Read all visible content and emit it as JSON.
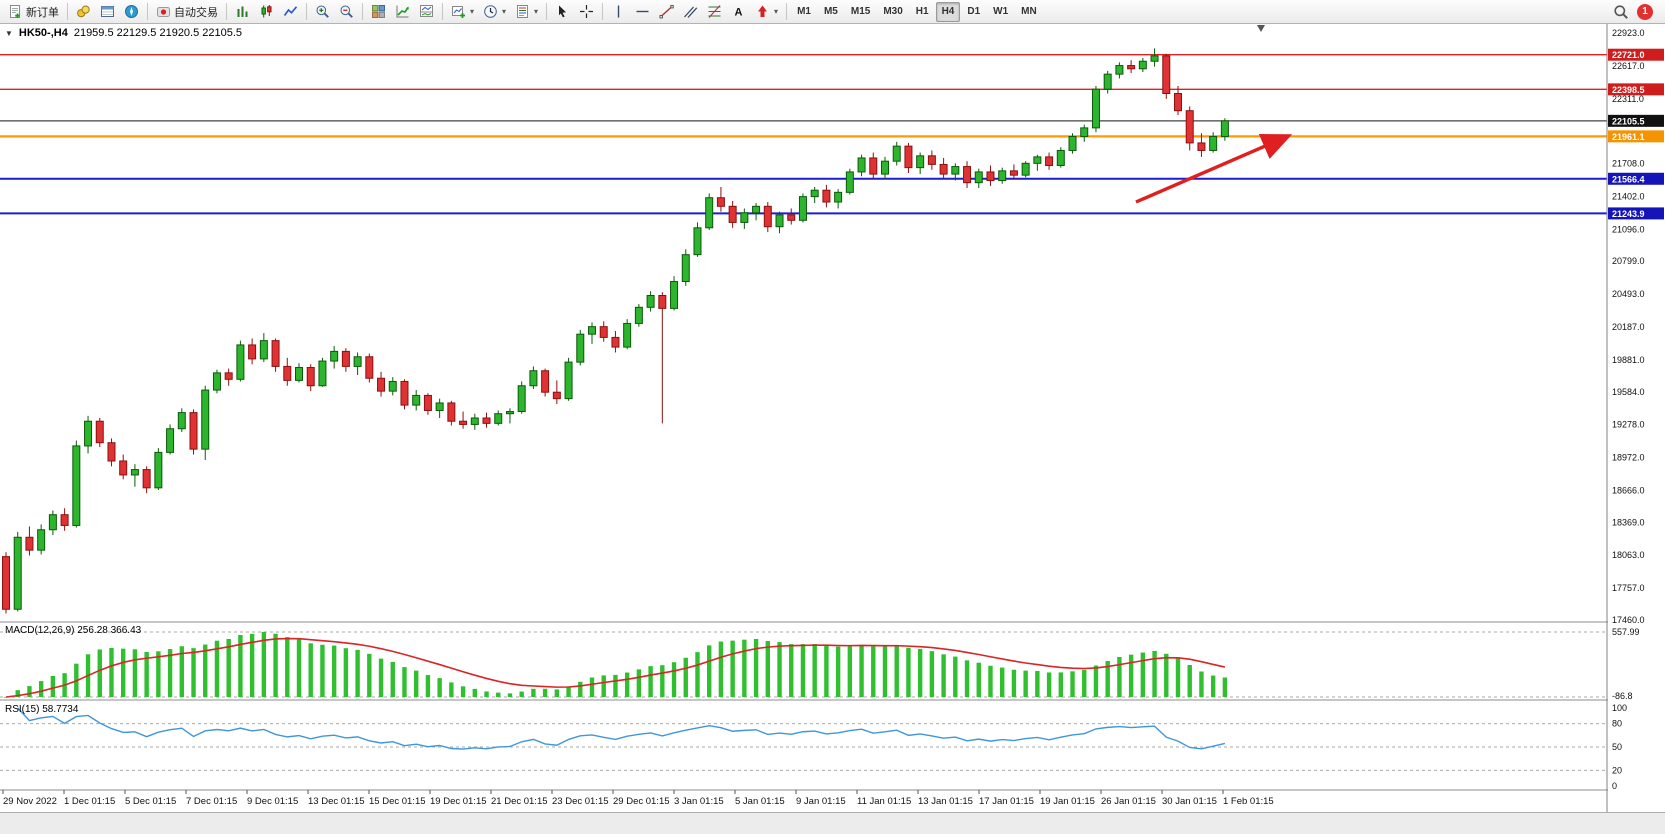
{
  "toolbar": {
    "new_order_label": "新订单",
    "auto_trading_label": "自动交易",
    "timeframes": [
      "M1",
      "M5",
      "M15",
      "M30",
      "H1",
      "H4",
      "D1",
      "W1",
      "MN"
    ],
    "active_timeframe": "H4",
    "notification_count": "1"
  },
  "chart": {
    "title_symbol": "HK50-,H4",
    "title_ohlc": "21959.5 22129.5 21920.5 22105.5"
  },
  "macd": {
    "label": "MACD(12,26,9) 256.28 366.43",
    "params": [
      12,
      26,
      9
    ],
    "axis_max": "557.99",
    "axis_min": "-86.8",
    "histogram_color": "#2fbf2f",
    "signal_color": "#d92525"
  },
  "rsi": {
    "label": "RSI(15) 58.7734",
    "period": 15,
    "levels": [
      80,
      50,
      20
    ],
    "axis_labels": [
      100,
      80,
      50,
      20,
      0
    ],
    "line_color": "#3f96dd"
  },
  "annotation": {
    "type": "trend-arrow-up",
    "color": "#e02020"
  },
  "chart_data": {
    "type": "candlestick",
    "symbol": "HK50-",
    "timeframe": "H4",
    "y_range": [
      17460.0,
      22923.0
    ],
    "bull_color": "#2db52d",
    "bull_edge": "#0b5a0b",
    "bear_color": "#e03232",
    "bear_edge": "#8a1111",
    "price_axis_labels": [
      22923.0,
      22617.0,
      22311.0,
      21708.0,
      21402.0,
      21096.0,
      20799.0,
      20493.0,
      20187.0,
      19881.0,
      19584.0,
      19278.0,
      18972.0,
      18666.0,
      18369.0,
      18063.0,
      17757.0,
      17460.0
    ],
    "time_labels": [
      "29 Nov 2022",
      "1 Dec 01:15",
      "5 Dec 01:15",
      "7 Dec 01:15",
      "9 Dec 01:15",
      "13 Dec 01:15",
      "15 Dec 01:15",
      "19 Dec 01:15",
      "21 Dec 01:15",
      "23 Dec 01:15",
      "29 Dec 01:15",
      "3 Jan 01:15",
      "5 Jan 01:15",
      "9 Jan 01:15",
      "11 Jan 01:15",
      "13 Jan 01:15",
      "17 Jan 01:15",
      "19 Jan 01:15",
      "26 Jan 01:15",
      "30 Jan 01:15",
      "1 Feb 01:15"
    ],
    "levels": [
      {
        "price": 22721.0,
        "label": "22721.0",
        "line_color": "#e01f1f",
        "badge_color": "#cf1d1d",
        "width": 1.4
      },
      {
        "price": 22398.5,
        "label": "22398.5",
        "line_color": "#e01f1f",
        "badge_color": "#cf1d1d",
        "width": 1.4
      },
      {
        "price": 22105.5,
        "label": "22105.5",
        "line_color": "#444444",
        "badge_color": "#111111",
        "width": 1.2
      },
      {
        "price": 21961.1,
        "label": "21961.1",
        "line_color": "#ff9b00",
        "badge_color": "#f59300",
        "width": 2.2
      },
      {
        "price": 21566.4,
        "label": "21566.4",
        "line_color": "#1d1dd0",
        "badge_color": "#1414b8",
        "width": 2.0
      },
      {
        "price": 21243.9,
        "label": "21243.9",
        "line_color": "#1d1dd0",
        "badge_color": "#1414b8",
        "width": 2.0
      }
    ],
    "ohlc": [
      [
        18050,
        18090,
        17520,
        17560
      ],
      [
        17560,
        18280,
        17540,
        18230
      ],
      [
        18230,
        18330,
        18060,
        18110
      ],
      [
        18110,
        18350,
        18070,
        18300
      ],
      [
        18300,
        18480,
        18250,
        18440
      ],
      [
        18440,
        18500,
        18290,
        18340
      ],
      [
        18340,
        19130,
        18320,
        19080
      ],
      [
        19080,
        19360,
        19010,
        19310
      ],
      [
        19310,
        19340,
        19070,
        19110
      ],
      [
        19110,
        19150,
        18890,
        18940
      ],
      [
        18940,
        19000,
        18770,
        18810
      ],
      [
        18810,
        18910,
        18700,
        18860
      ],
      [
        18860,
        18890,
        18640,
        18690
      ],
      [
        18690,
        19060,
        18670,
        19020
      ],
      [
        19020,
        19280,
        19000,
        19240
      ],
      [
        19240,
        19430,
        19210,
        19390
      ],
      [
        19390,
        19420,
        19000,
        19050
      ],
      [
        19050,
        19640,
        18950,
        19600
      ],
      [
        19600,
        19790,
        19570,
        19760
      ],
      [
        19760,
        19800,
        19640,
        19700
      ],
      [
        19700,
        20060,
        19680,
        20020
      ],
      [
        20020,
        20080,
        19840,
        19890
      ],
      [
        19890,
        20130,
        19860,
        20060
      ],
      [
        20060,
        20080,
        19770,
        19820
      ],
      [
        19820,
        19900,
        19640,
        19690
      ],
      [
        19690,
        19850,
        19670,
        19810
      ],
      [
        19810,
        19840,
        19590,
        19640
      ],
      [
        19640,
        19900,
        19630,
        19870
      ],
      [
        19870,
        20010,
        19800,
        19960
      ],
      [
        19960,
        19990,
        19770,
        19820
      ],
      [
        19820,
        19950,
        19740,
        19910
      ],
      [
        19910,
        19940,
        19670,
        19710
      ],
      [
        19710,
        19770,
        19540,
        19590
      ],
      [
        19590,
        19720,
        19550,
        19680
      ],
      [
        19680,
        19700,
        19420,
        19460
      ],
      [
        19460,
        19600,
        19410,
        19550
      ],
      [
        19550,
        19570,
        19370,
        19410
      ],
      [
        19410,
        19520,
        19340,
        19480
      ],
      [
        19480,
        19500,
        19270,
        19310
      ],
      [
        19310,
        19400,
        19240,
        19280
      ],
      [
        19280,
        19380,
        19230,
        19340
      ],
      [
        19340,
        19390,
        19250,
        19290
      ],
      [
        19290,
        19410,
        19270,
        19380
      ],
      [
        19380,
        19430,
        19290,
        19400
      ],
      [
        19400,
        19680,
        19380,
        19640
      ],
      [
        19640,
        19820,
        19610,
        19780
      ],
      [
        19780,
        19800,
        19540,
        19580
      ],
      [
        19580,
        19690,
        19470,
        19520
      ],
      [
        19520,
        19900,
        19500,
        19860
      ],
      [
        19860,
        20160,
        19830,
        20120
      ],
      [
        20120,
        20230,
        20030,
        20190
      ],
      [
        20190,
        20240,
        20050,
        20090
      ],
      [
        20090,
        20150,
        19950,
        20000
      ],
      [
        20000,
        20260,
        19980,
        20220
      ],
      [
        20220,
        20400,
        20190,
        20370
      ],
      [
        20370,
        20520,
        20330,
        20480
      ],
      [
        20480,
        20510,
        19290,
        20360
      ],
      [
        20360,
        20660,
        20340,
        20610
      ],
      [
        20610,
        20910,
        20570,
        20860
      ],
      [
        20860,
        21160,
        20840,
        21110
      ],
      [
        21110,
        21430,
        21090,
        21390
      ],
      [
        21390,
        21490,
        21260,
        21310
      ],
      [
        21310,
        21360,
        21110,
        21160
      ],
      [
        21160,
        21290,
        21100,
        21250
      ],
      [
        21250,
        21340,
        21180,
        21310
      ],
      [
        21310,
        21350,
        21070,
        21120
      ],
      [
        21120,
        21260,
        21060,
        21230
      ],
      [
        21230,
        21290,
        21140,
        21180
      ],
      [
        21180,
        21430,
        21160,
        21400
      ],
      [
        21400,
        21490,
        21340,
        21460
      ],
      [
        21460,
        21510,
        21300,
        21350
      ],
      [
        21350,
        21470,
        21290,
        21440
      ],
      [
        21440,
        21660,
        21420,
        21630
      ],
      [
        21630,
        21790,
        21590,
        21760
      ],
      [
        21760,
        21810,
        21560,
        21610
      ],
      [
        21610,
        21770,
        21560,
        21730
      ],
      [
        21730,
        21910,
        21690,
        21870
      ],
      [
        21870,
        21900,
        21620,
        21670
      ],
      [
        21670,
        21810,
        21610,
        21780
      ],
      [
        21780,
        21830,
        21650,
        21700
      ],
      [
        21700,
        21760,
        21560,
        21610
      ],
      [
        21610,
        21710,
        21550,
        21680
      ],
      [
        21680,
        21730,
        21480,
        21530
      ],
      [
        21530,
        21660,
        21480,
        21630
      ],
      [
        21630,
        21690,
        21500,
        21550
      ],
      [
        21550,
        21670,
        21520,
        21640
      ],
      [
        21640,
        21700,
        21560,
        21600
      ],
      [
        21600,
        21730,
        21580,
        21710
      ],
      [
        21710,
        21790,
        21640,
        21770
      ],
      [
        21770,
        21810,
        21650,
        21690
      ],
      [
        21690,
        21860,
        21670,
        21830
      ],
      [
        21830,
        21990,
        21800,
        21960
      ],
      [
        21960,
        22070,
        21910,
        22040
      ],
      [
        22040,
        22430,
        22000,
        22400
      ],
      [
        22400,
        22570,
        22360,
        22540
      ],
      [
        22540,
        22650,
        22500,
        22620
      ],
      [
        22620,
        22670,
        22550,
        22590
      ],
      [
        22590,
        22690,
        22560,
        22660
      ],
      [
        22660,
        22780,
        22610,
        22710
      ],
      [
        22710,
        22730,
        22310,
        22360
      ],
      [
        22360,
        22430,
        22160,
        22200
      ],
      [
        22200,
        22240,
        21830,
        21900
      ],
      [
        21900,
        21990,
        21770,
        21830
      ],
      [
        21830,
        22000,
        21810,
        21960
      ],
      [
        21959.5,
        22129.5,
        21920.5,
        22105.5
      ]
    ]
  }
}
